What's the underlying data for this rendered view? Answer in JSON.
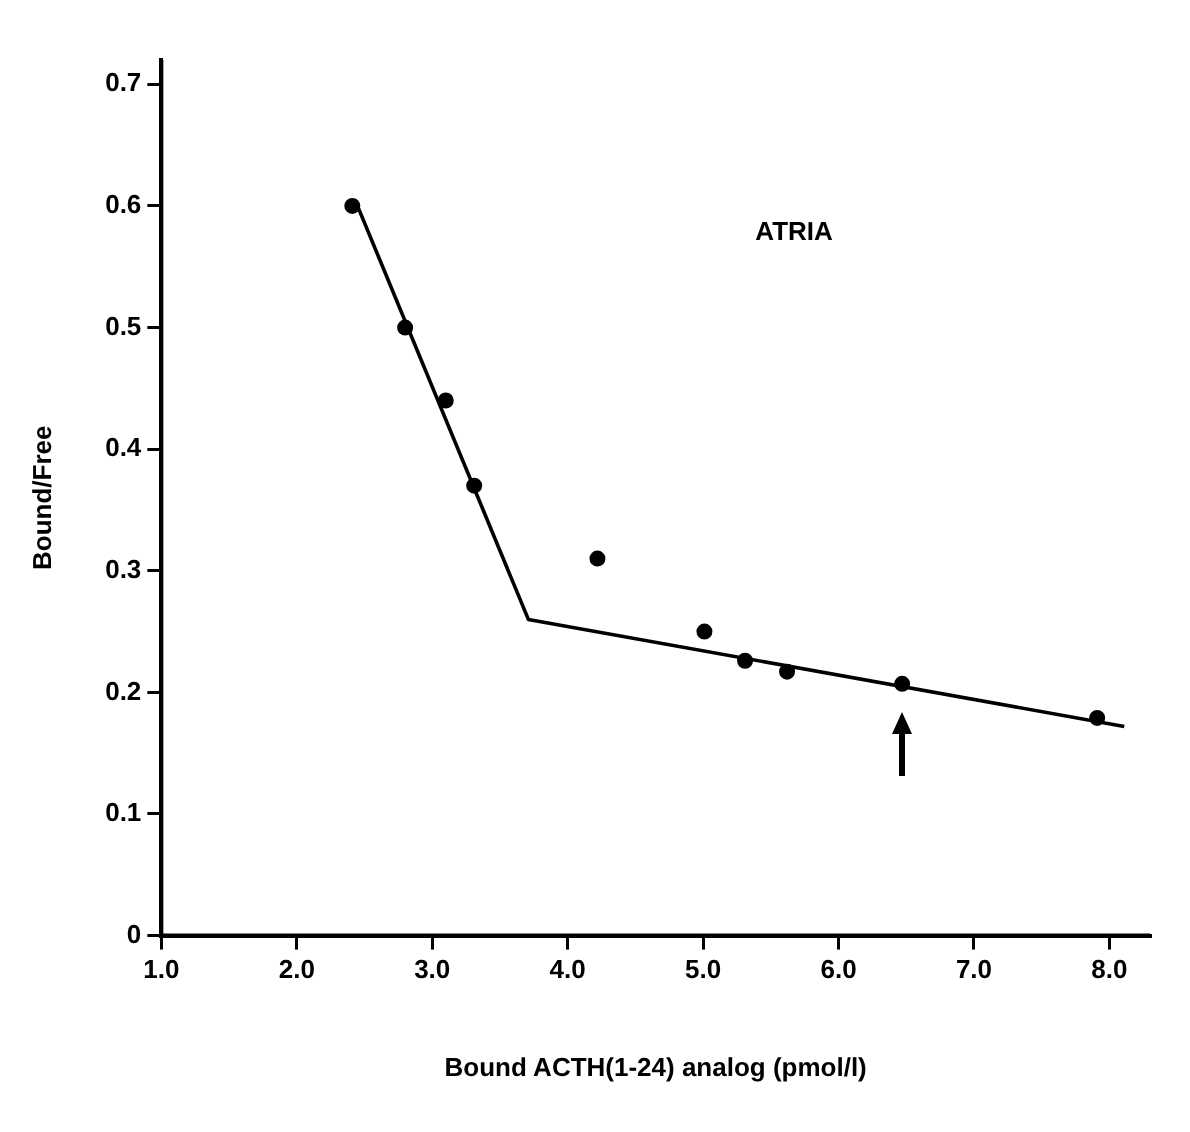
{
  "chart_data": {
    "type": "scatter",
    "xlabel": "Bound ACTH(1-24) analog (pmol/l)",
    "ylabel": "Bound/Free",
    "annotations": [
      "ATRIA"
    ],
    "series": [
      {
        "color": "#000000",
        "marker": "circle",
        "x": [
          2.41,
          2.8,
          3.1,
          3.31,
          4.22,
          5.01,
          5.31,
          5.62,
          6.47,
          7.91
        ],
        "values": [
          0.6,
          0.5,
          0.44,
          0.37,
          0.31,
          0.25,
          0.226,
          0.217,
          0.207,
          0.179
        ]
      },
      {
        "type": "line",
        "color": "#000000",
        "marker": "none",
        "x": [
          2.43,
          3.71,
          8.11
        ],
        "values": [
          0.605,
          0.26,
          0.172
        ]
      }
    ],
    "xlim": [
      1.0,
      8.3
    ],
    "xticks": [
      {
        "value": 1,
        "label": "1.0"
      },
      {
        "value": 2,
        "label": "2.0"
      },
      {
        "value": 3,
        "label": "3.0"
      },
      {
        "value": 4,
        "label": "4.0"
      },
      {
        "value": 5,
        "label": "5.0"
      },
      {
        "value": 6,
        "label": "6.0"
      },
      {
        "value": 7,
        "label": "7.0"
      },
      {
        "value": 8,
        "label": "8.0"
      }
    ],
    "ylim": [
      0,
      0.72
    ],
    "yticks": [
      0,
      0.1,
      0.2,
      0.3,
      0.4,
      0.5,
      0.6,
      0.7
    ],
    "grid": false,
    "legend": false
  }
}
